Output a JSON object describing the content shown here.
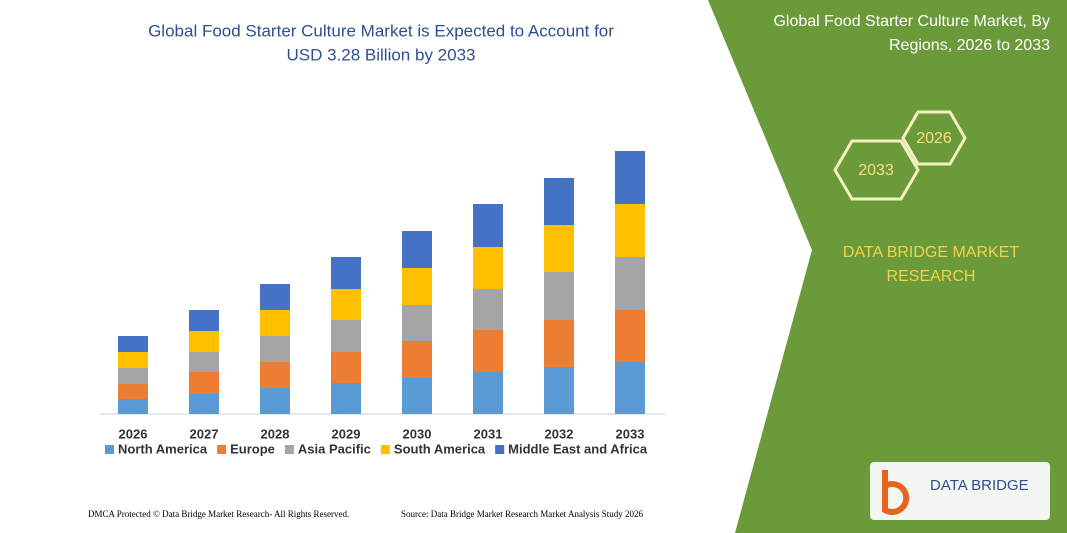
{
  "chart_data": {
    "type": "bar",
    "stacked": true,
    "title": "Global Food Starter Culture Market is Expected to Account for",
    "subtitle": "USD 3.28 Billion by 2033",
    "categories": [
      "2026",
      "2027",
      "2028",
      "2029",
      "2030",
      "2031",
      "2032",
      "2033"
    ],
    "series": [
      {
        "name": "North America",
        "color": "#5b9bd5",
        "values": [
          15,
          20,
          26,
          31,
          36,
          42,
          47,
          52
        ]
      },
      {
        "name": "Europe",
        "color": "#ed7d31",
        "values": [
          15,
          22,
          26,
          31,
          37,
          42,
          47,
          52
        ]
      },
      {
        "name": "Asia Pacific",
        "color": "#a5a5a5",
        "values": [
          16,
          20,
          26,
          32,
          36,
          41,
          48,
          53
        ]
      },
      {
        "name": "South America",
        "color": "#ffc000",
        "values": [
          16,
          21,
          26,
          31,
          37,
          42,
          47,
          53
        ]
      },
      {
        "name": "Middle East and Africa",
        "color": "#4472c4",
        "values": [
          16,
          21,
          26,
          32,
          37,
          43,
          47,
          53
        ]
      }
    ]
  },
  "panel": {
    "title_line1": "Global Food Starter Culture Market, By",
    "title_line2": "Regions, 2026 to 2033",
    "hex_a": "2026",
    "hex_b": "2033",
    "brand_line1": "DATA BRIDGE MARKET",
    "brand_line2": "RESEARCH"
  },
  "logo": "DATA BRIDGE",
  "footer": {
    "left": "DMCA Protected © Data Bridge Market Research-  All Rights Reserved.",
    "right": "Source: Data Bridge Market Research  Market Analysis Study 2026"
  }
}
